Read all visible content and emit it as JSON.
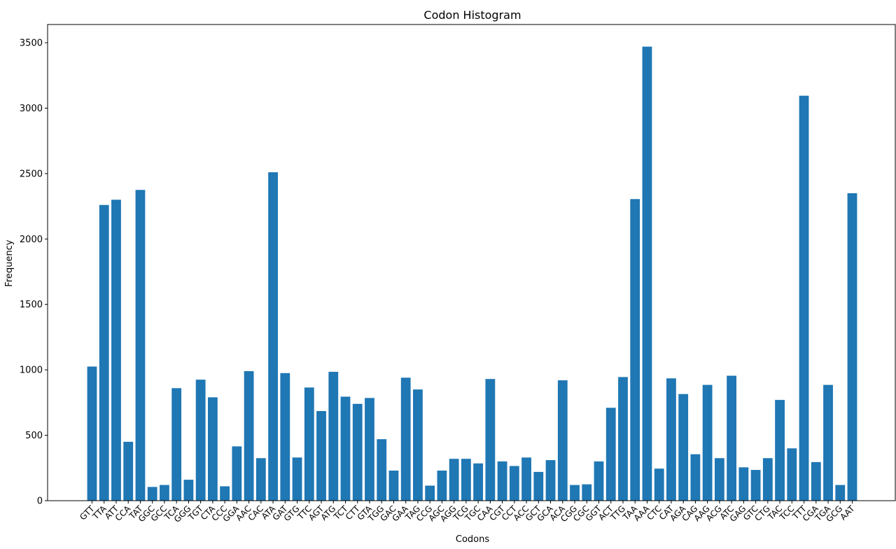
{
  "chart_data": {
    "type": "bar",
    "title": "Codon Histogram",
    "xlabel": "Codons",
    "ylabel": "Frequency",
    "ylim": [
      0,
      3650
    ],
    "yticks": [
      0,
      500,
      1000,
      1500,
      2000,
      2500,
      3000,
      3500
    ],
    "grid": false,
    "bar_color": "#1f77b4",
    "categories": [
      "GTT",
      "TTA",
      "ATT",
      "CCA",
      "TAT",
      "GGC",
      "GCC",
      "TCA",
      "GGG",
      "TGT",
      "CTA",
      "CCC",
      "GGA",
      "AAC",
      "CAC",
      "ATA",
      "GAT",
      "GTG",
      "TTC",
      "AGT",
      "ATG",
      "TCT",
      "CTT",
      "GTA",
      "TGG",
      "GAC",
      "GAA",
      "TAG",
      "CCG",
      "AGC",
      "AGG",
      "TCG",
      "TGC",
      "CAA",
      "CGT",
      "CCT",
      "ACC",
      "GCT",
      "GCA",
      "ACA",
      "CGG",
      "CGC",
      "GGT",
      "ACT",
      "TTG",
      "TAA",
      "AAA",
      "CTC",
      "CAT",
      "AGA",
      "CAG",
      "AAG",
      "ACG",
      "ATC",
      "GAG",
      "GTC",
      "CTG",
      "TAC",
      "TCC",
      "TTT",
      "CGA",
      "TGA",
      "GCG",
      "AAT"
    ],
    "values": [
      1025,
      2260,
      2300,
      450,
      2375,
      105,
      120,
      860,
      160,
      925,
      790,
      110,
      415,
      990,
      325,
      2510,
      975,
      330,
      865,
      685,
      985,
      795,
      740,
      785,
      470,
      230,
      940,
      850,
      115,
      230,
      320,
      320,
      285,
      930,
      300,
      265,
      330,
      220,
      310,
      920,
      120,
      125,
      300,
      710,
      945,
      2305,
      3470,
      245,
      935,
      815,
      355,
      885,
      325,
      955,
      255,
      235,
      325,
      770,
      400,
      3095,
      295,
      885,
      120,
      2350
    ]
  }
}
